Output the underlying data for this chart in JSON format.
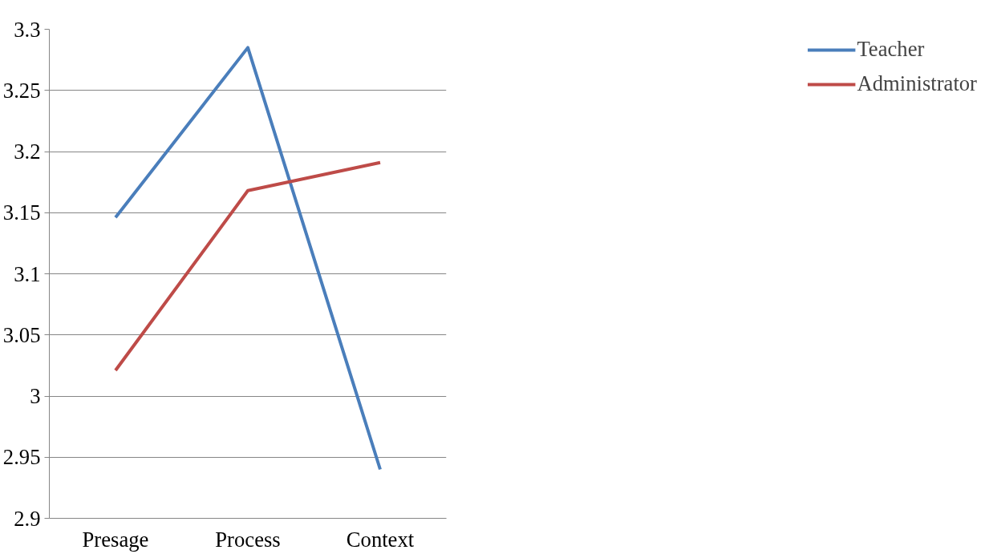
{
  "chart_data": {
    "type": "line",
    "categories": [
      "Presage",
      "Process",
      "Context"
    ],
    "series": [
      {
        "name": "Teacher",
        "color": "#4a7ebb",
        "values": [
          3.146,
          3.285,
          2.94
        ]
      },
      {
        "name": "Administrator",
        "color": "#be4b48",
        "values": [
          3.021,
          3.168,
          3.191
        ]
      }
    ],
    "ylim": [
      2.9,
      3.3
    ],
    "yticks": [
      2.9,
      2.95,
      3,
      3.05,
      3.1,
      3.15,
      3.2,
      3.25,
      3.3
    ],
    "grid": "y",
    "legend": "right",
    "marker": "none",
    "line_style": "solid"
  }
}
